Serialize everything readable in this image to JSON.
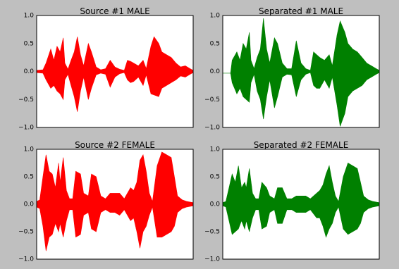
{
  "figure": {
    "background": "#bfbfbf",
    "panel_background": "#ffffff"
  },
  "chart_data": [
    {
      "type": "line",
      "title": "Source #1 MALE",
      "xlabel": "",
      "ylabel": "",
      "ylim": [
        -1.0,
        1.0
      ],
      "yticks": [
        -1.0,
        -0.5,
        0.0,
        0.5,
        1.0
      ],
      "ytick_labels": [
        "−1.0",
        "−0.5",
        "0.0",
        "0.5",
        "1.0"
      ],
      "grid": false,
      "color": "#ff0000",
      "series": [
        {
          "envelope_x": [
            0,
            0.04,
            0.06,
            0.09,
            0.11,
            0.13,
            0.15,
            0.17,
            0.18,
            0.2,
            0.22,
            0.24,
            0.26,
            0.28,
            0.3,
            0.33,
            0.35,
            0.38,
            0.41,
            0.44,
            0.47,
            0.5,
            0.53,
            0.56,
            0.58,
            0.6,
            0.62,
            0.65,
            0.68,
            0.7,
            0.73,
            0.75,
            0.78,
            0.8,
            0.83,
            0.86,
            0.89,
            0.92,
            0.95,
            0.98,
            1.0
          ],
          "envelope_upper": [
            0.02,
            0.03,
            0.15,
            0.4,
            0.2,
            0.45,
            0.35,
            0.6,
            0.15,
            0.04,
            0.2,
            0.35,
            0.62,
            0.3,
            0.1,
            0.5,
            0.35,
            0.08,
            0.03,
            0.05,
            0.2,
            0.08,
            0.04,
            0.02,
            0.2,
            0.18,
            0.15,
            0.1,
            0.2,
            0.05,
            0.45,
            0.62,
            0.5,
            0.35,
            0.3,
            0.25,
            0.15,
            0.08,
            0.1,
            0.05,
            0.02
          ],
          "envelope_lower": [
            -0.02,
            -0.03,
            -0.15,
            -0.3,
            -0.25,
            -0.35,
            -0.4,
            -0.5,
            -0.15,
            -0.05,
            -0.25,
            -0.45,
            -0.72,
            -0.35,
            -0.1,
            -0.5,
            -0.3,
            -0.06,
            -0.03,
            -0.05,
            -0.28,
            -0.1,
            -0.04,
            -0.02,
            -0.15,
            -0.2,
            -0.18,
            -0.1,
            -0.25,
            -0.06,
            -0.4,
            -0.42,
            -0.45,
            -0.3,
            -0.25,
            -0.2,
            -0.15,
            -0.08,
            -0.1,
            -0.05,
            -0.02
          ]
        }
      ]
    },
    {
      "type": "line",
      "title": "Separated #1 MALE",
      "xlabel": "",
      "ylabel": "",
      "ylim": [
        -1.0,
        1.0
      ],
      "yticks": [
        -1.0,
        -0.5,
        0.0,
        0.5,
        1.0
      ],
      "ytick_labels": [
        "−1.0",
        "−0.5",
        "0.0",
        "0.5",
        "1.0"
      ],
      "grid": false,
      "color": "#008000",
      "series": [
        {
          "envelope_x": [
            0,
            0.05,
            0.06,
            0.09,
            0.11,
            0.13,
            0.15,
            0.17,
            0.18,
            0.2,
            0.22,
            0.24,
            0.26,
            0.28,
            0.3,
            0.33,
            0.35,
            0.38,
            0.41,
            0.44,
            0.47,
            0.5,
            0.53,
            0.56,
            0.58,
            0.6,
            0.62,
            0.65,
            0.68,
            0.7,
            0.73,
            0.75,
            0.78,
            0.8,
            0.83,
            0.86,
            0.89,
            0.92,
            0.95,
            0.98,
            1.0
          ],
          "envelope_upper": [
            -0.03,
            -0.03,
            0.2,
            0.35,
            0.2,
            0.5,
            0.4,
            0.7,
            0.2,
            0.05,
            0.25,
            0.4,
            0.95,
            0.4,
            0.15,
            0.6,
            0.5,
            0.15,
            0.05,
            0.05,
            0.55,
            0.15,
            0.05,
            0.02,
            0.35,
            0.3,
            0.25,
            0.2,
            0.3,
            0.1,
            0.65,
            0.9,
            0.7,
            0.5,
            0.4,
            0.35,
            0.25,
            0.15,
            0.1,
            0.05,
            0.02
          ],
          "envelope_lower": [
            -0.03,
            -0.03,
            -0.2,
            -0.4,
            -0.3,
            -0.45,
            -0.5,
            -0.55,
            -0.2,
            -0.05,
            -0.35,
            -0.5,
            -0.85,
            -0.45,
            -0.15,
            -0.65,
            -0.45,
            -0.1,
            -0.05,
            -0.06,
            -0.45,
            -0.15,
            -0.05,
            -0.02,
            -0.25,
            -0.3,
            -0.3,
            -0.15,
            -0.3,
            -0.1,
            -0.6,
            -0.98,
            -0.75,
            -0.45,
            -0.35,
            -0.3,
            -0.25,
            -0.15,
            -0.1,
            -0.05,
            -0.02
          ]
        }
      ]
    },
    {
      "type": "line",
      "title": "Source #2 FEMALE",
      "xlabel": "",
      "ylabel": "",
      "ylim": [
        -1.0,
        1.0
      ],
      "yticks": [
        -1.0,
        -0.5,
        0.0,
        0.5,
        1.0
      ],
      "ytick_labels": [
        "−1.0",
        "−0.5",
        "0.0",
        "0.5",
        "1.0"
      ],
      "grid": false,
      "color": "#ff0000",
      "series": [
        {
          "envelope_x": [
            0,
            0.02,
            0.04,
            0.06,
            0.08,
            0.1,
            0.12,
            0.14,
            0.15,
            0.17,
            0.19,
            0.21,
            0.23,
            0.25,
            0.28,
            0.3,
            0.33,
            0.35,
            0.38,
            0.41,
            0.44,
            0.47,
            0.5,
            0.53,
            0.56,
            0.6,
            0.62,
            0.64,
            0.66,
            0.68,
            0.7,
            0.72,
            0.74,
            0.77,
            0.8,
            0.83,
            0.86,
            0.88,
            0.9,
            0.93,
            0.96,
            1.0
          ],
          "envelope_upper": [
            0.05,
            0.08,
            0.5,
            0.9,
            0.6,
            0.55,
            0.3,
            0.75,
            0.4,
            0.85,
            0.25,
            0.1,
            0.1,
            0.6,
            0.55,
            0.2,
            0.15,
            0.55,
            0.5,
            0.15,
            0.1,
            0.2,
            0.2,
            0.2,
            0.1,
            0.3,
            0.25,
            0.4,
            0.8,
            0.9,
            0.6,
            0.2,
            0.05,
            0.7,
            0.95,
            0.9,
            0.85,
            0.5,
            0.15,
            0.08,
            0.05,
            0.03
          ],
          "envelope_lower": [
            -0.05,
            -0.08,
            -0.4,
            -0.85,
            -0.6,
            -0.55,
            -0.35,
            -0.5,
            -0.35,
            -0.6,
            -0.3,
            -0.1,
            -0.1,
            -0.6,
            -0.55,
            -0.2,
            -0.15,
            -0.45,
            -0.5,
            -0.15,
            -0.1,
            -0.15,
            -0.15,
            -0.2,
            -0.1,
            -0.3,
            -0.25,
            -0.5,
            -0.8,
            -0.5,
            -0.4,
            -0.2,
            -0.05,
            -0.6,
            -0.6,
            -0.55,
            -0.5,
            -0.4,
            -0.15,
            -0.08,
            -0.05,
            -0.03
          ]
        }
      ]
    },
    {
      "type": "line",
      "title": "Separated #2 FEMALE",
      "xlabel": "",
      "ylabel": "",
      "ylim": [
        -1.0,
        1.0
      ],
      "yticks": [
        -1.0,
        -0.5,
        0.0,
        0.5,
        1.0
      ],
      "ytick_labels": [
        "−1.0",
        "−0.5",
        "0.0",
        "0.5",
        "1.0"
      ],
      "grid": false,
      "color": "#008000",
      "series": [
        {
          "envelope_x": [
            0,
            0.02,
            0.04,
            0.06,
            0.08,
            0.1,
            0.12,
            0.14,
            0.15,
            0.17,
            0.19,
            0.21,
            0.23,
            0.25,
            0.28,
            0.3,
            0.33,
            0.35,
            0.38,
            0.41,
            0.44,
            0.47,
            0.5,
            0.53,
            0.56,
            0.6,
            0.62,
            0.64,
            0.66,
            0.68,
            0.7,
            0.72,
            0.74,
            0.77,
            0.8,
            0.83,
            0.86,
            0.88,
            0.9,
            0.93,
            0.96,
            1.0
          ],
          "envelope_upper": [
            0.03,
            0.05,
            0.3,
            0.55,
            0.4,
            0.7,
            0.3,
            0.4,
            0.3,
            0.65,
            0.2,
            0.1,
            0.1,
            0.4,
            0.3,
            0.15,
            0.1,
            0.3,
            0.3,
            0.1,
            0.1,
            0.15,
            0.15,
            0.15,
            0.1,
            0.2,
            0.25,
            0.35,
            0.55,
            0.7,
            0.4,
            0.15,
            0.05,
            0.5,
            0.75,
            0.7,
            0.65,
            0.4,
            0.15,
            0.08,
            0.05,
            0.03
          ],
          "envelope_lower": [
            -0.03,
            -0.05,
            -0.3,
            -0.55,
            -0.5,
            -0.45,
            -0.3,
            -0.45,
            -0.3,
            -0.5,
            -0.25,
            -0.1,
            -0.1,
            -0.45,
            -0.4,
            -0.15,
            -0.1,
            -0.35,
            -0.35,
            -0.1,
            -0.1,
            -0.15,
            -0.15,
            -0.15,
            -0.1,
            -0.25,
            -0.25,
            -0.4,
            -0.6,
            -0.45,
            -0.35,
            -0.15,
            -0.05,
            -0.45,
            -0.55,
            -0.5,
            -0.45,
            -0.35,
            -0.15,
            -0.08,
            -0.05,
            -0.03
          ]
        }
      ]
    }
  ]
}
